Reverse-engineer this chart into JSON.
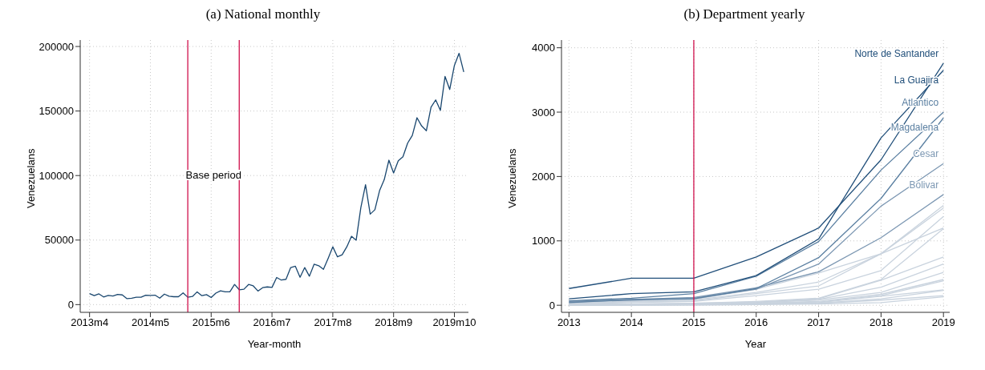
{
  "chart_data": [
    {
      "type": "line",
      "title": "(a) National monthly",
      "xlabel": "Year-month",
      "ylabel": "Venezuelans",
      "grid": true,
      "legend": false,
      "marker": "none",
      "line_style": "solid",
      "x": [
        "2013-04",
        "2013-05",
        "2013-06",
        "2013-07",
        "2013-08",
        "2013-09",
        "2013-10",
        "2013-11",
        "2013-12",
        "2014-01",
        "2014-02",
        "2014-03",
        "2014-04",
        "2014-05",
        "2014-06",
        "2014-07",
        "2014-08",
        "2014-09",
        "2014-10",
        "2014-11",
        "2014-12",
        "2015-01",
        "2015-02",
        "2015-03",
        "2015-04",
        "2015-05",
        "2015-06",
        "2015-07",
        "2015-08",
        "2015-09",
        "2015-10",
        "2015-11",
        "2015-12",
        "2016-01",
        "2016-02",
        "2016-03",
        "2016-04",
        "2016-05",
        "2016-06",
        "2016-07",
        "2016-08",
        "2016-09",
        "2016-10",
        "2016-11",
        "2016-12",
        "2017-01",
        "2017-02",
        "2017-03",
        "2017-04",
        "2017-05",
        "2017-06",
        "2017-07",
        "2017-08",
        "2017-09",
        "2017-10",
        "2017-11",
        "2017-12",
        "2018-01",
        "2018-02",
        "2018-03",
        "2018-04",
        "2018-05",
        "2018-06",
        "2018-07",
        "2018-08",
        "2018-09",
        "2018-10",
        "2018-11",
        "2018-12",
        "2019-01",
        "2019-02",
        "2019-03",
        "2019-04",
        "2019-05",
        "2019-06",
        "2019-07",
        "2019-08",
        "2019-09",
        "2019-10",
        "2019-11",
        "2019-12"
      ],
      "series": [
        {
          "color": "#1a476f",
          "values": [
            8500,
            6900,
            8300,
            5900,
            7100,
            6700,
            7900,
            7500,
            4600,
            5000,
            5700,
            5700,
            7300,
            7100,
            7300,
            5000,
            8100,
            6500,
            6100,
            6100,
            9100,
            5700,
            6300,
            9900,
            6900,
            7700,
            5500,
            8900,
            10700,
            9900,
            9900,
            15600,
            11500,
            11900,
            15600,
            14500,
            10500,
            13100,
            13700,
            13300,
            21000,
            19000,
            19600,
            28700,
            29700,
            21200,
            28700,
            22000,
            31300,
            30100,
            27300,
            35800,
            44800,
            37000,
            38600,
            44800,
            52900,
            49900,
            75200,
            92900,
            70100,
            73500,
            88300,
            96800,
            111900,
            102000,
            111500,
            114500,
            125100,
            131100,
            144800,
            138400,
            134700,
            152900,
            158600,
            150500,
            176800,
            166700,
            185300,
            194700,
            180200
          ]
        }
      ],
      "xlim": [
        "2013-02",
        "2020-01"
      ],
      "xticks": [
        {
          "value": "2013-04",
          "label": "2013m4"
        },
        {
          "value": "2014-05",
          "label": "2014m5"
        },
        {
          "value": "2015-06",
          "label": "2015m6"
        },
        {
          "value": "2016-07",
          "label": "2016m7"
        },
        {
          "value": "2017-08",
          "label": "2017m8"
        },
        {
          "value": "2018-09",
          "label": "2018m9"
        },
        {
          "value": "2019-10",
          "label": "2019m10"
        }
      ],
      "ylim": [
        -6000,
        205000
      ],
      "yticks": [
        0,
        50000,
        100000,
        150000,
        200000
      ],
      "ref_lines": [
        {
          "axis": "x",
          "value": "2015-01",
          "color": "#d0104c"
        },
        {
          "axis": "x",
          "value": "2015-12",
          "color": "#d0104c"
        }
      ],
      "annotations": [
        "Base period"
      ]
    },
    {
      "type": "line",
      "title": "(b) Department yearly",
      "xlabel": "Year",
      "ylabel": "Venezuelans",
      "grid": true,
      "legend": false,
      "marker": "none",
      "line_style": "solid",
      "x": [
        2013,
        2014,
        2015,
        2016,
        2017,
        2018,
        2019
      ],
      "series": [
        {
          "color": "#c9d3de",
          "values": [
            40,
            60,
            80,
            200,
            360,
            800,
            1550
          ]
        },
        {
          "color": "#c9d3de",
          "values": [
            30,
            50,
            70,
            180,
            300,
            800,
            1510
          ]
        },
        {
          "color": "#c9d3de",
          "values": [
            20,
            40,
            60,
            150,
            250,
            540,
            1380
          ]
        },
        {
          "color": "#c9d3de",
          "values": [
            50,
            70,
            90,
            250,
            500,
            800,
            1200
          ]
        },
        {
          "color": "#c9d3de",
          "values": [
            10,
            20,
            30,
            60,
            110,
            400,
            1190
          ]
        },
        {
          "color": "#c9d3de",
          "values": [
            10,
            20,
            30,
            50,
            100,
            390,
            750
          ]
        },
        {
          "color": "#c9d3de",
          "values": [
            10,
            20,
            20,
            40,
            90,
            280,
            640
          ]
        },
        {
          "color": "#c9d3de",
          "values": [
            10,
            10,
            20,
            40,
            80,
            200,
            510
          ]
        },
        {
          "color": "#c9d3de",
          "values": [
            10,
            10,
            20,
            30,
            60,
            170,
            400
          ]
        },
        {
          "color": "#c9d3de",
          "values": [
            10,
            10,
            10,
            30,
            50,
            150,
            380
          ]
        },
        {
          "color": "#c9d3de",
          "values": [
            0,
            10,
            10,
            20,
            40,
            140,
            240
          ]
        },
        {
          "color": "#c9d3de",
          "values": [
            0,
            0,
            10,
            20,
            30,
            100,
            230
          ]
        },
        {
          "color": "#c9d3de",
          "values": [
            0,
            0,
            10,
            20,
            30,
            80,
            150
          ]
        },
        {
          "color": "#c9d3de",
          "values": [
            0,
            0,
            0,
            10,
            20,
            40,
            130
          ]
        },
        {
          "name": "Bolivar",
          "color": "#7d98b3",
          "values": [
            60,
            90,
            120,
            270,
            520,
            1050,
            1720
          ]
        },
        {
          "name": "Cesar",
          "color": "#7d98b3",
          "values": [
            50,
            80,
            110,
            250,
            640,
            1540,
            2200
          ]
        },
        {
          "name": "Magdalena",
          "color": "#5a7fa1",
          "values": [
            40,
            90,
            100,
            260,
            740,
            1660,
            2910
          ]
        },
        {
          "name": "Atlantico",
          "color": "#5a7fa1",
          "values": [
            70,
            110,
            180,
            450,
            990,
            2100,
            3000
          ]
        },
        {
          "name": "La Guajira",
          "color": "#214f7a",
          "values": [
            100,
            180,
            210,
            460,
            1030,
            2600,
            3650
          ]
        },
        {
          "name": "Norte de Santander",
          "color": "#214f7a",
          "values": [
            260,
            420,
            420,
            750,
            1200,
            2260,
            3760
          ]
        }
      ],
      "xlim": [
        2012.88,
        2019.1
      ],
      "xticks": [
        2013,
        2014,
        2015,
        2016,
        2017,
        2018,
        2019
      ],
      "ylim": [
        -110,
        4120
      ],
      "yticks": [
        0,
        1000,
        2000,
        3000,
        4000
      ],
      "ref_lines": [
        {
          "axis": "x",
          "value": 2015,
          "color": "#d0104c"
        }
      ]
    }
  ]
}
